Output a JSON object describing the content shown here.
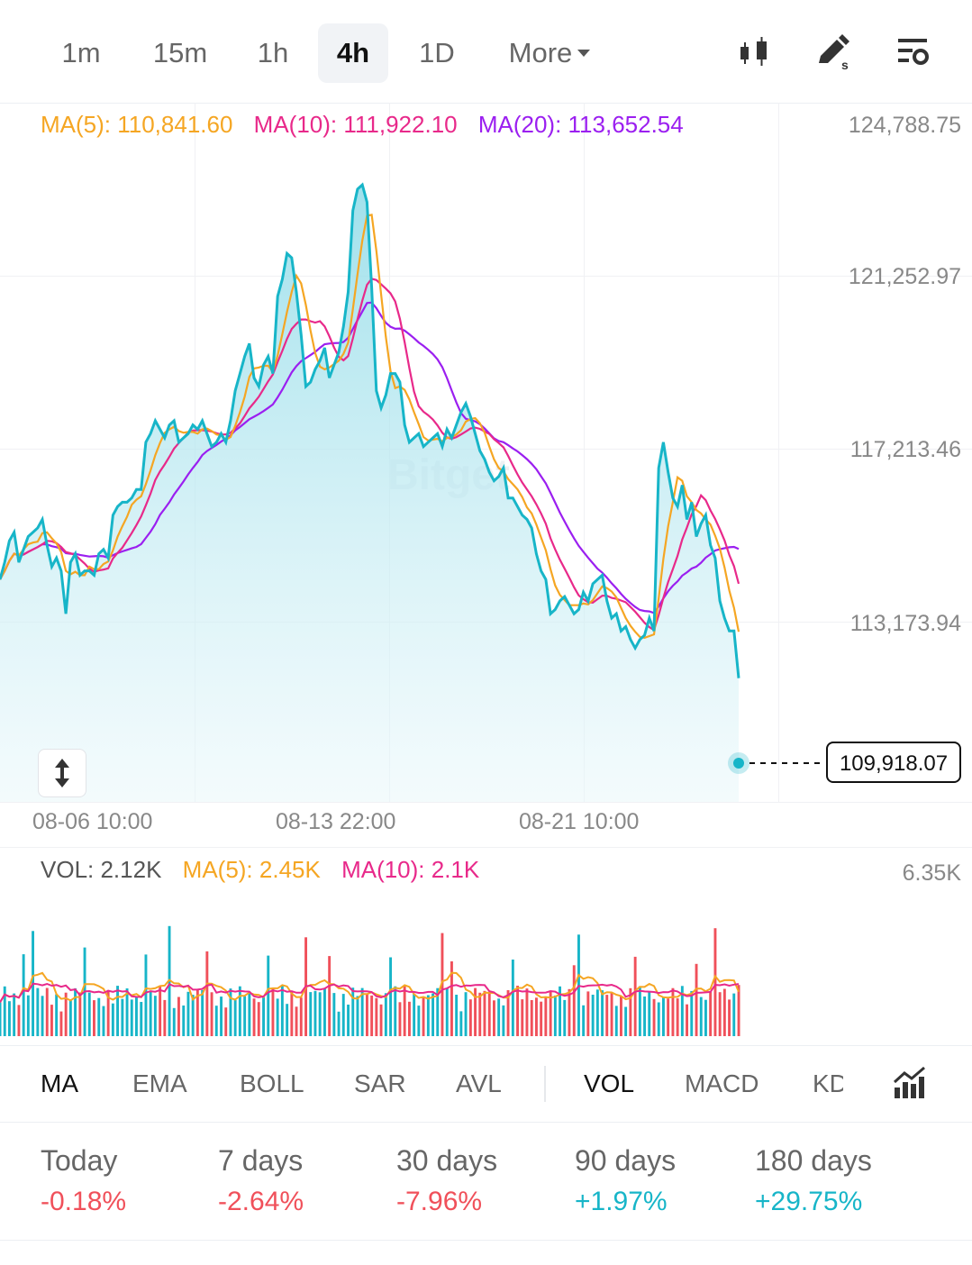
{
  "intervals": [
    {
      "label": "1m",
      "active": false
    },
    {
      "label": "15m",
      "active": false
    },
    {
      "label": "1h",
      "active": false
    },
    {
      "label": "4h",
      "active": true
    },
    {
      "label": "1D",
      "active": false
    }
  ],
  "more_label": "More",
  "tools": [
    "candlestick-icon",
    "draw-icon",
    "settings-icon"
  ],
  "colors": {
    "price_line": "#17b5c8",
    "ma5": "#f5a623",
    "ma10": "#e8298a",
    "ma20": "#9b1ff0",
    "up": "#17b5c8",
    "down": "#f0505a"
  },
  "chart": {
    "ma5_label": "MA(5): 110,841.60",
    "ma10_label": "MA(10): 111,922.10",
    "ma20_label": "MA(20): 113,652.54",
    "price_ticks": [
      "124,788.75",
      "121,252.97",
      "117,213.46",
      "113,173.94"
    ],
    "current_price": "109,918.07",
    "time_ticks": [
      "08-06 10:00",
      "08-13 22:00",
      "08-21 10:00"
    ],
    "watermark": "Bitget"
  },
  "volume": {
    "vol_label": "VOL: 2.12K",
    "ma5_label": "MA(5): 2.45K",
    "ma10_label": "MA(10): 2.1K",
    "max_label": "6.35K"
  },
  "indicators": {
    "main": [
      "MA",
      "EMA",
      "BOLL",
      "SAR",
      "AVL"
    ],
    "sub": [
      "VOL",
      "MACD",
      "KD"
    ],
    "active_main": "MA",
    "active_sub": "VOL"
  },
  "performance": [
    {
      "label": "Today",
      "value": "-0.18%",
      "dir": "neg"
    },
    {
      "label": "7 days",
      "value": "-2.64%",
      "dir": "neg"
    },
    {
      "label": "30 days",
      "value": "-7.96%",
      "dir": "neg"
    },
    {
      "label": "90 days",
      "value": "+1.97%",
      "dir": "pos"
    },
    {
      "label": "180 days",
      "value": "+29.75%",
      "dir": "pos"
    }
  ],
  "chart_data": {
    "type": "line",
    "price_axis_ticks": [
      124788.75,
      121252.97,
      117213.46,
      113173.94
    ],
    "last_price": 109918.07,
    "series": [
      {
        "name": "MA(5)",
        "last": 110841.6
      },
      {
        "name": "MA(10)",
        "last": 111922.1
      },
      {
        "name": "MA(20)",
        "last": 113652.54
      }
    ],
    "x_ticks": [
      "08-06 10:00",
      "08-13 22:00",
      "08-21 10:00"
    ],
    "price": [
      114200,
      114600,
      115100,
      115300,
      114600,
      114900,
      115200,
      115300,
      115400,
      115600,
      115000,
      114500,
      114700,
      114400,
      113400,
      114600,
      114800,
      114300,
      114400,
      114400,
      114300,
      114800,
      114900,
      114700,
      115700,
      115900,
      116000,
      116000,
      116100,
      116300,
      116300,
      117400,
      117600,
      117900,
      117700,
      117500,
      117800,
      117900,
      117400,
      117500,
      117600,
      117800,
      117700,
      117900,
      117600,
      117300,
      117400,
      117600,
      117400,
      117900,
      118600,
      119000,
      119400,
      119700,
      118900,
      118700,
      119200,
      119400,
      119000,
      120800,
      121200,
      121800,
      121700,
      120900,
      119900,
      118700,
      118800,
      119100,
      119300,
      119600,
      118900,
      119200,
      119500,
      120100,
      120900,
      122800,
      123300,
      123400,
      123000,
      121000,
      118600,
      118200,
      118500,
      119000,
      119000,
      118800,
      117800,
      117400,
      117500,
      117600,
      117300,
      117400,
      117500,
      117600,
      117300,
      117700,
      117500,
      117800,
      118100,
      118300,
      118000,
      117600,
      117200,
      117000,
      116700,
      116500,
      116600,
      116800,
      116100,
      116100,
      115900,
      115700,
      115600,
      115400,
      114800,
      114400,
      114200,
      113400,
      113500,
      113700,
      113800,
      113600,
      113400,
      113500,
      113900,
      113700,
      114100,
      114200,
      114300,
      113700,
      113300,
      113400,
      113000,
      113100,
      112800,
      112600,
      112800,
      112900,
      113300,
      113000,
      116800,
      117400,
      116700,
      116100,
      115900,
      116400,
      115600,
      116000,
      115200,
      115500,
      115700,
      115000,
      114700,
      113700,
      113300,
      113000,
      113000,
      111900
    ],
    "volume_max": 6350
  }
}
